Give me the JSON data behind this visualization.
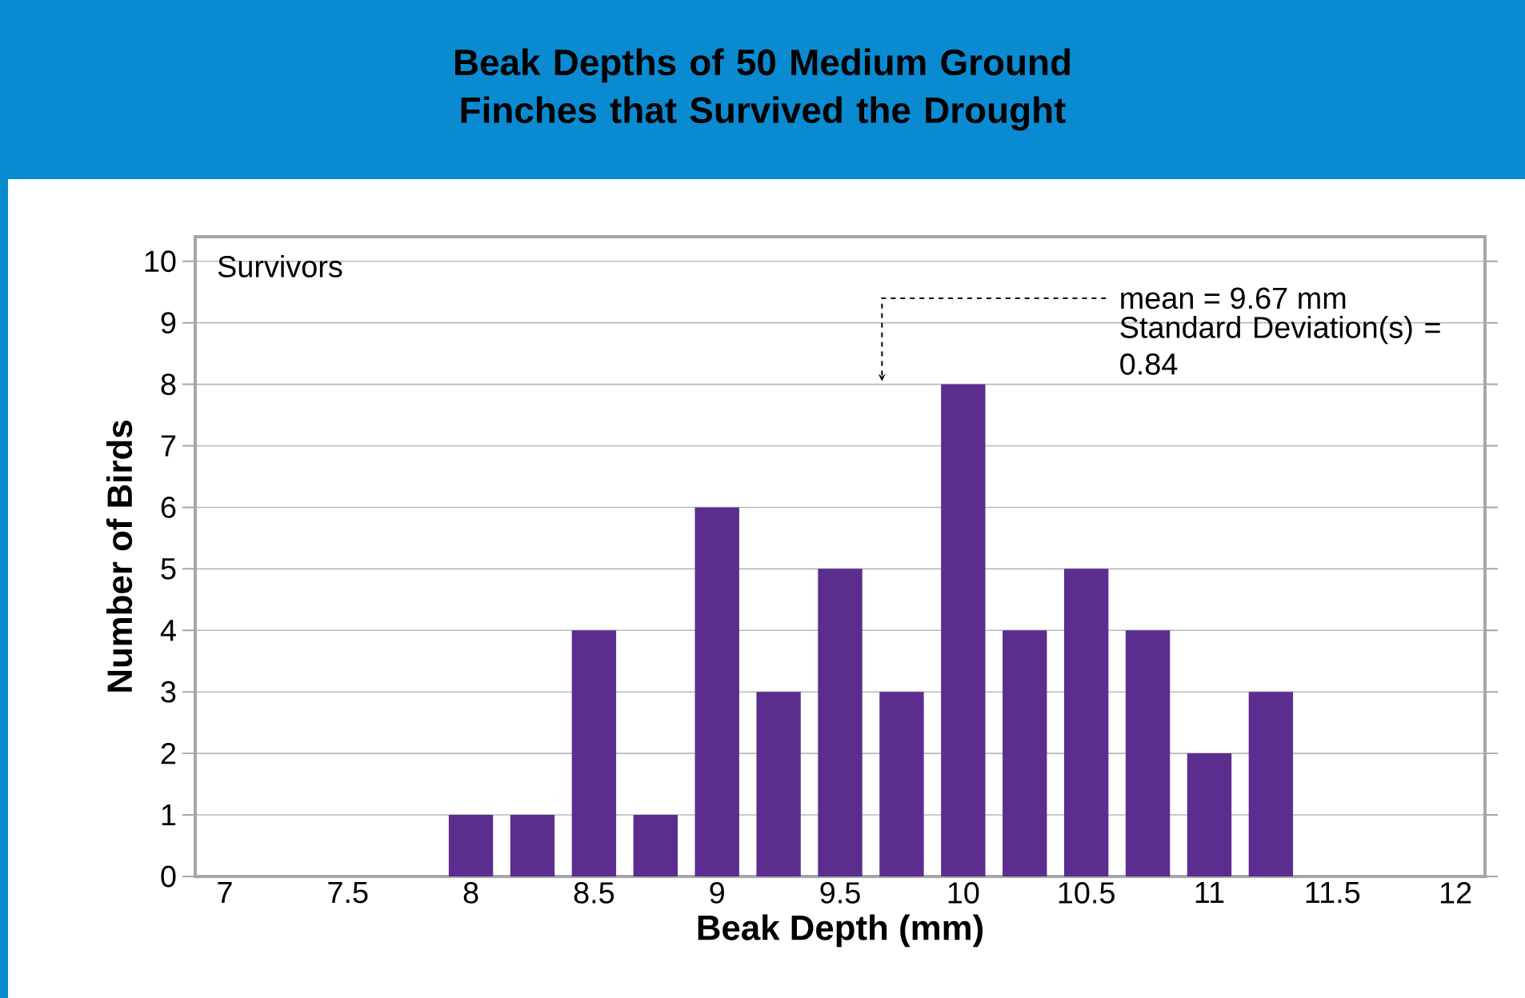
{
  "chart_data": {
    "type": "bar",
    "title": "Beak Depths of 50 Medium Ground Finches that Survived the Drought",
    "xlabel": "Beak Depth (mm)",
    "ylabel": "Number of Birds",
    "x": [
      8,
      8.25,
      8.5,
      8.75,
      9,
      9.25,
      9.5,
      9.75,
      10,
      10.25,
      10.5,
      10.75,
      11,
      11.25
    ],
    "values": [
      1,
      1,
      4,
      1,
      6,
      3,
      5,
      3,
      8,
      4,
      5,
      4,
      2,
      3
    ],
    "color": "#5b2d8e",
    "xlim": [
      6.88,
      12.12
    ],
    "xticks": [
      7,
      7.5,
      8,
      8.5,
      9,
      9.5,
      10,
      10.5,
      11,
      11.5,
      12
    ],
    "ylim": [
      0,
      10.4
    ],
    "yticks": [
      0,
      1,
      2,
      3,
      4,
      5,
      6,
      7,
      8,
      9,
      10
    ],
    "grid": "y",
    "annotations": [
      "Survivors",
      "Standard Deviation(s) = 0.84"
    ],
    "ref_lines": [
      {
        "axis": "x",
        "value": 9.67,
        "label": "mean = 9.67 mm",
        "line_style": "dashed"
      }
    ]
  }
}
